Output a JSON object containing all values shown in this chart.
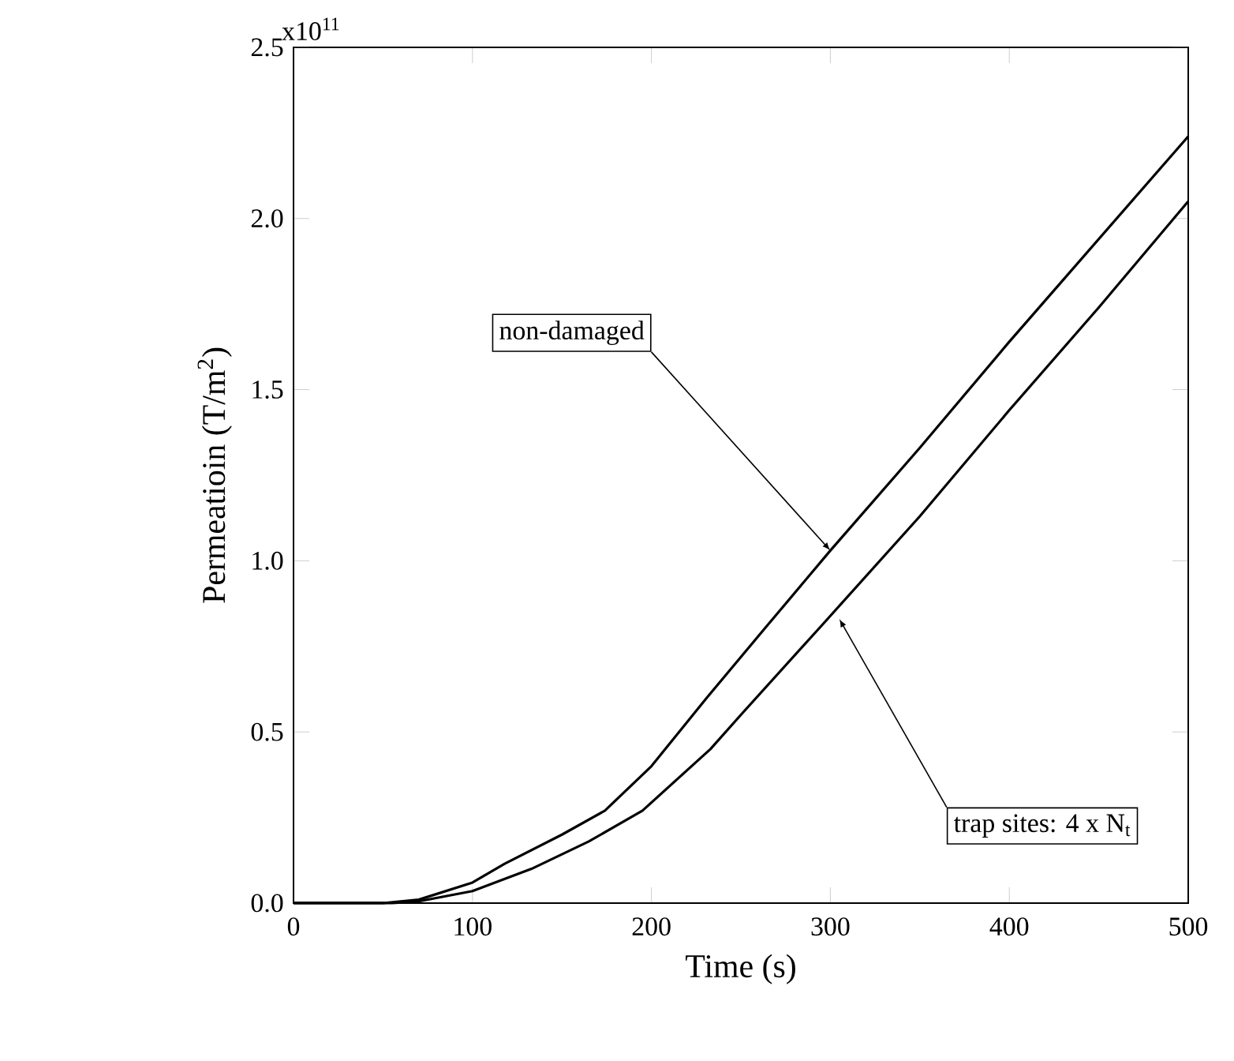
{
  "chart_data": {
    "type": "line",
    "xlabel": "Time (s)",
    "ylabel": "Permeatioin (T/m$^{2}$)",
    "xlim": [
      0,
      500
    ],
    "ylim": [
      0,
      2.5
    ],
    "xticks": [
      0,
      100,
      200,
      300,
      400,
      500
    ],
    "yticks": [
      {
        "value": 0,
        "label": "0.0"
      },
      {
        "value": 0.5,
        "label": "0.5"
      },
      {
        "value": 1,
        "label": "1.0"
      },
      {
        "value": 1.5,
        "label": "1.5"
      },
      {
        "value": 2,
        "label": "2.0"
      },
      {
        "value": 2.5,
        "label": "2.5"
      }
    ],
    "grid": false,
    "marker": "none",
    "line_style": "solid",
    "series": [
      {
        "color": "#000000",
        "x": [
          0,
          50,
          70,
          100,
          118,
          150,
          174,
          200,
          231,
          263,
          300,
          350,
          400,
          450,
          500
        ],
        "values": [
          0,
          0,
          0.01,
          0.06,
          0.115,
          0.2,
          0.27,
          0.4,
          0.6,
          0.8,
          1.03,
          1.33,
          1.64,
          1.94,
          2.24
        ]
      },
      {
        "color": "#000000",
        "x": [
          0,
          55,
          70,
          100,
          133,
          165,
          195,
          233,
          250,
          295,
          350,
          400,
          450,
          500
        ],
        "values": [
          0,
          0,
          0.005,
          0.035,
          0.1,
          0.18,
          0.27,
          0.45,
          0.55,
          0.81,
          1.13,
          1.44,
          1.74,
          2.05
        ]
      }
    ],
    "annotations": [
      "x10$^{11}$",
      {
        "text": "non-damaged",
        "x": 300,
        "y": 1.03
      },
      {
        "text": "trap sites: 4 x N$_{t}$",
        "x": 305,
        "y": 0.83
      }
    ]
  }
}
